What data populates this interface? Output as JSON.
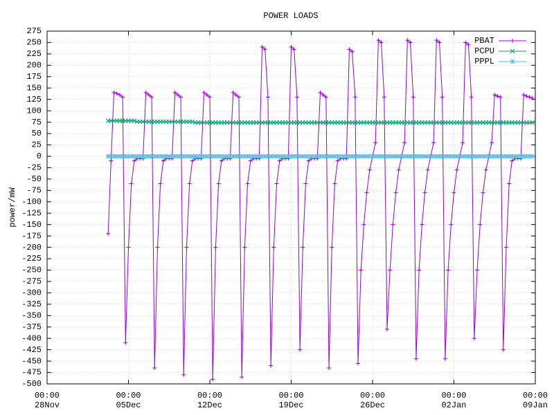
{
  "chart_data": {
    "type": "line",
    "title": "POWER LOADS",
    "y_label": "power/mW",
    "grid": true,
    "legend": "top-right",
    "xlim": [
      "28Nov 00:00",
      "09Jan 00:00"
    ],
    "xticks": [
      {
        "value": "28Nov 00:00",
        "label": "00:00\n28Nov"
      },
      {
        "value": "05Dec 00:00",
        "label": "00:00\n05Dec"
      },
      {
        "value": "12Dec 00:00",
        "label": "00:00\n12Dec"
      },
      {
        "value": "19Dec 00:00",
        "label": "00:00\n19Dec"
      },
      {
        "value": "26Dec 00:00",
        "label": "00:00\n26Dec"
      },
      {
        "value": "02Jan 00:00",
        "label": "00:00\n02Jan"
      },
      {
        "value": "09Jan 00:00",
        "label": "00:00\n09Jan"
      }
    ],
    "ylim": [
      -500,
      275
    ],
    "yticks": [
      -500,
      -475,
      -450,
      -425,
      -400,
      -375,
      -350,
      -325,
      -300,
      -275,
      -250,
      -225,
      -200,
      -175,
      -150,
      -125,
      -100,
      -75,
      -50,
      -25,
      0,
      25,
      50,
      75,
      100,
      125,
      150,
      175,
      200,
      225,
      250,
      275
    ],
    "x": [
      "03Dec 06:00",
      "03Dec 12:00",
      "03Dec 18:00",
      "04Dec 00:00",
      "04Dec 06:00",
      "04Dec 12:00",
      "04Dec 18:00",
      "05Dec 00:00",
      "05Dec 06:00",
      "05Dec 12:00",
      "05Dec 18:00",
      "06Dec 00:00",
      "06Dec 06:00",
      "06Dec 12:00",
      "06Dec 18:00",
      "07Dec 00:00",
      "07Dec 06:00",
      "07Dec 12:00",
      "07Dec 18:00",
      "08Dec 00:00",
      "08Dec 06:00",
      "08Dec 12:00",
      "08Dec 18:00",
      "09Dec 00:00",
      "09Dec 06:00",
      "09Dec 12:00",
      "09Dec 18:00",
      "10Dec 00:00",
      "10Dec 06:00",
      "10Dec 12:00",
      "10Dec 18:00",
      "11Dec 00:00",
      "11Dec 06:00",
      "11Dec 12:00",
      "11Dec 18:00",
      "12Dec 00:00",
      "12Dec 06:00",
      "12Dec 12:00",
      "12Dec 18:00",
      "13Dec 00:00",
      "13Dec 06:00",
      "13Dec 12:00",
      "13Dec 18:00",
      "14Dec 00:00",
      "14Dec 06:00",
      "14Dec 12:00",
      "14Dec 18:00",
      "15Dec 00:00",
      "15Dec 06:00",
      "15Dec 12:00",
      "15Dec 18:00",
      "16Dec 00:00",
      "16Dec 06:00",
      "16Dec 12:00",
      "16Dec 18:00",
      "17Dec 00:00",
      "17Dec 06:00",
      "17Dec 12:00",
      "17Dec 18:00",
      "18Dec 00:00",
      "18Dec 06:00",
      "18Dec 12:00",
      "18Dec 18:00",
      "19Dec 00:00",
      "19Dec 06:00",
      "19Dec 12:00",
      "19Dec 18:00",
      "20Dec 00:00",
      "20Dec 06:00",
      "20Dec 12:00",
      "20Dec 18:00",
      "21Dec 00:00",
      "21Dec 06:00",
      "21Dec 12:00",
      "21Dec 18:00",
      "22Dec 00:00",
      "22Dec 06:00",
      "22Dec 12:00",
      "22Dec 18:00",
      "23Dec 00:00",
      "23Dec 06:00",
      "23Dec 12:00",
      "23Dec 18:00",
      "24Dec 00:00",
      "24Dec 06:00",
      "24Dec 12:00",
      "24Dec 18:00",
      "25Dec 00:00",
      "25Dec 06:00",
      "25Dec 12:00",
      "25Dec 18:00",
      "26Dec 00:00",
      "26Dec 06:00",
      "26Dec 12:00",
      "26Dec 18:00",
      "27Dec 00:00",
      "27Dec 06:00",
      "27Dec 12:00",
      "27Dec 18:00",
      "28Dec 00:00",
      "28Dec 06:00",
      "28Dec 12:00",
      "28Dec 18:00",
      "29Dec 00:00",
      "29Dec 06:00",
      "29Dec 12:00",
      "29Dec 18:00",
      "30Dec 00:00",
      "30Dec 06:00",
      "30Dec 12:00",
      "30Dec 18:00",
      "31Dec 00:00",
      "31Dec 06:00",
      "31Dec 12:00",
      "31Dec 18:00",
      "01Jan 00:00",
      "01Jan 06:00",
      "01Jan 12:00",
      "01Jan 18:00",
      "02Jan 00:00",
      "02Jan 06:00",
      "02Jan 12:00",
      "02Jan 18:00",
      "03Jan 00:00",
      "03Jan 06:00",
      "03Jan 12:00",
      "03Jan 18:00",
      "04Jan 00:00",
      "04Jan 06:00",
      "04Jan 12:00",
      "04Jan 18:00",
      "05Jan 00:00",
      "05Jan 06:00",
      "05Jan 12:00",
      "05Jan 18:00",
      "06Jan 00:00",
      "06Jan 06:00",
      "06Jan 12:00",
      "06Jan 18:00",
      "07Jan 00:00",
      "07Jan 06:00",
      "07Jan 12:00",
      "07Jan 18:00",
      "08Jan 00:00",
      "08Jan 06:00",
      "08Jan 12:00",
      "08Jan 18:00"
    ],
    "series": [
      {
        "name": "PBAT",
        "color": "#9400d3",
        "marker": "plus",
        "values": [
          -170,
          -10,
          140,
          138,
          135,
          130,
          -410,
          -200,
          -60,
          -10,
          -5,
          -5,
          -5,
          140,
          135,
          130,
          -465,
          -200,
          -60,
          -10,
          -5,
          -5,
          -5,
          140,
          135,
          130,
          -480,
          -200,
          -60,
          -10,
          -5,
          -5,
          -5,
          140,
          135,
          130,
          -490,
          -200,
          -60,
          -10,
          -5,
          -5,
          -5,
          140,
          135,
          130,
          -485,
          -200,
          -60,
          -10,
          -5,
          -5,
          -5,
          240,
          235,
          130,
          -460,
          -200,
          -60,
          -10,
          -5,
          -5,
          -5,
          240,
          235,
          130,
          -425,
          -200,
          -60,
          -10,
          -5,
          -5,
          -5,
          140,
          135,
          130,
          -465,
          -200,
          -60,
          -10,
          -5,
          -5,
          -5,
          235,
          230,
          130,
          -455,
          -250,
          -150,
          -80,
          -30,
          0,
          30,
          255,
          250,
          130,
          -380,
          -250,
          -150,
          -80,
          -30,
          0,
          30,
          255,
          250,
          130,
          -445,
          -250,
          -150,
          -80,
          -30,
          0,
          30,
          255,
          250,
          130,
          -445,
          -250,
          -150,
          -80,
          -30,
          0,
          30,
          250,
          245,
          130,
          -400,
          -250,
          -150,
          -80,
          -30,
          0,
          30,
          135,
          132,
          130,
          -425,
          -200,
          -60,
          -10,
          -5,
          -5,
          -5,
          135,
          132,
          130,
          128
        ]
      },
      {
        "name": "PCPU",
        "color": "#009e73",
        "marker": "cross",
        "values": [
          78,
          78,
          78,
          78,
          78,
          78,
          78,
          78,
          78,
          78,
          76,
          76,
          76,
          76,
          76,
          76,
          76,
          76,
          76,
          76,
          76,
          76,
          76,
          76,
          76,
          76,
          76,
          76,
          76,
          76,
          74,
          74,
          74,
          74,
          74,
          74,
          74,
          74,
          74,
          74,
          74,
          74,
          74,
          74,
          74,
          74,
          74,
          74,
          74,
          74,
          74,
          74,
          74,
          74,
          74,
          74,
          74,
          74,
          74,
          74,
          74,
          74,
          74,
          74,
          74,
          74,
          74,
          74,
          74,
          74,
          74,
          74,
          74,
          74,
          74,
          74,
          74,
          74,
          74,
          74,
          74,
          74,
          74,
          74,
          74,
          74,
          74,
          74,
          74,
          74,
          74,
          74,
          74,
          74,
          74,
          74,
          74,
          74,
          74,
          74,
          74,
          74,
          74,
          74,
          74,
          74,
          74,
          74,
          74,
          74,
          74,
          74,
          74,
          74,
          74,
          74,
          74,
          74,
          74,
          74,
          74,
          74,
          74,
          74,
          74,
          74,
          74,
          74,
          74,
          74,
          74,
          74,
          74,
          74,
          74,
          74,
          74,
          74,
          74,
          74,
          74,
          74,
          74,
          74,
          74,
          74,
          74
        ]
      },
      {
        "name": "PPPL",
        "color": "#56b4e9",
        "marker": "star",
        "values": [
          0,
          0,
          0,
          0,
          0,
          0,
          0,
          0,
          0,
          0,
          0,
          0,
          0,
          0,
          0,
          0,
          0,
          0,
          0,
          0,
          0,
          0,
          0,
          0,
          0,
          0,
          0,
          0,
          0,
          0,
          0,
          0,
          0,
          0,
          0,
          0,
          0,
          0,
          0,
          0,
          0,
          0,
          0,
          0,
          0,
          0,
          0,
          0,
          0,
          0,
          0,
          0,
          0,
          0,
          0,
          0,
          0,
          0,
          0,
          0,
          0,
          0,
          0,
          0,
          0,
          0,
          0,
          0,
          0,
          0,
          0,
          0,
          0,
          0,
          0,
          0,
          0,
          0,
          0,
          0,
          0,
          0,
          0,
          0,
          0,
          0,
          0,
          0,
          0,
          0,
          0,
          0,
          0,
          0,
          0,
          0,
          0,
          0,
          0,
          0,
          0,
          0,
          0,
          0,
          0,
          0,
          0,
          0,
          0,
          0,
          0,
          0,
          0,
          0,
          0,
          0,
          0,
          0,
          0,
          0,
          0,
          0,
          0,
          0,
          0,
          0,
          0,
          0,
          0,
          0,
          0,
          0,
          0,
          0,
          0,
          0,
          0,
          0,
          0,
          0,
          0,
          0,
          0,
          0,
          0,
          0,
          0
        ]
      }
    ]
  }
}
